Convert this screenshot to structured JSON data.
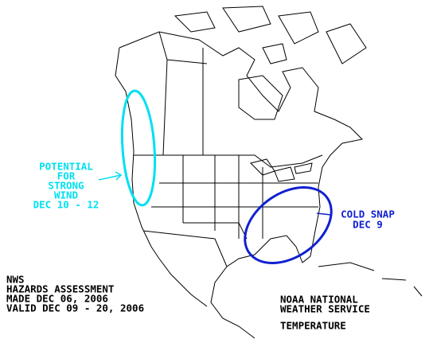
{
  "wind_note": {
    "lines": [
      "POTENTIAL",
      "FOR",
      "STRONG",
      "WIND",
      "DEC 10 - 12"
    ]
  },
  "cold_note": {
    "lines": [
      "COLD SNAP",
      "DEC 9"
    ]
  },
  "assessment": {
    "lines": [
      "NWS",
      "HAZARDS ASSESSMENT",
      "MADE DEC 06, 2006",
      "VALID DEC 09 - 20, 2006"
    ]
  },
  "agency": {
    "lines": [
      "NOAA NATIONAL",
      "WEATHER SERVICE"
    ],
    "product": "TEMPERATURE"
  }
}
